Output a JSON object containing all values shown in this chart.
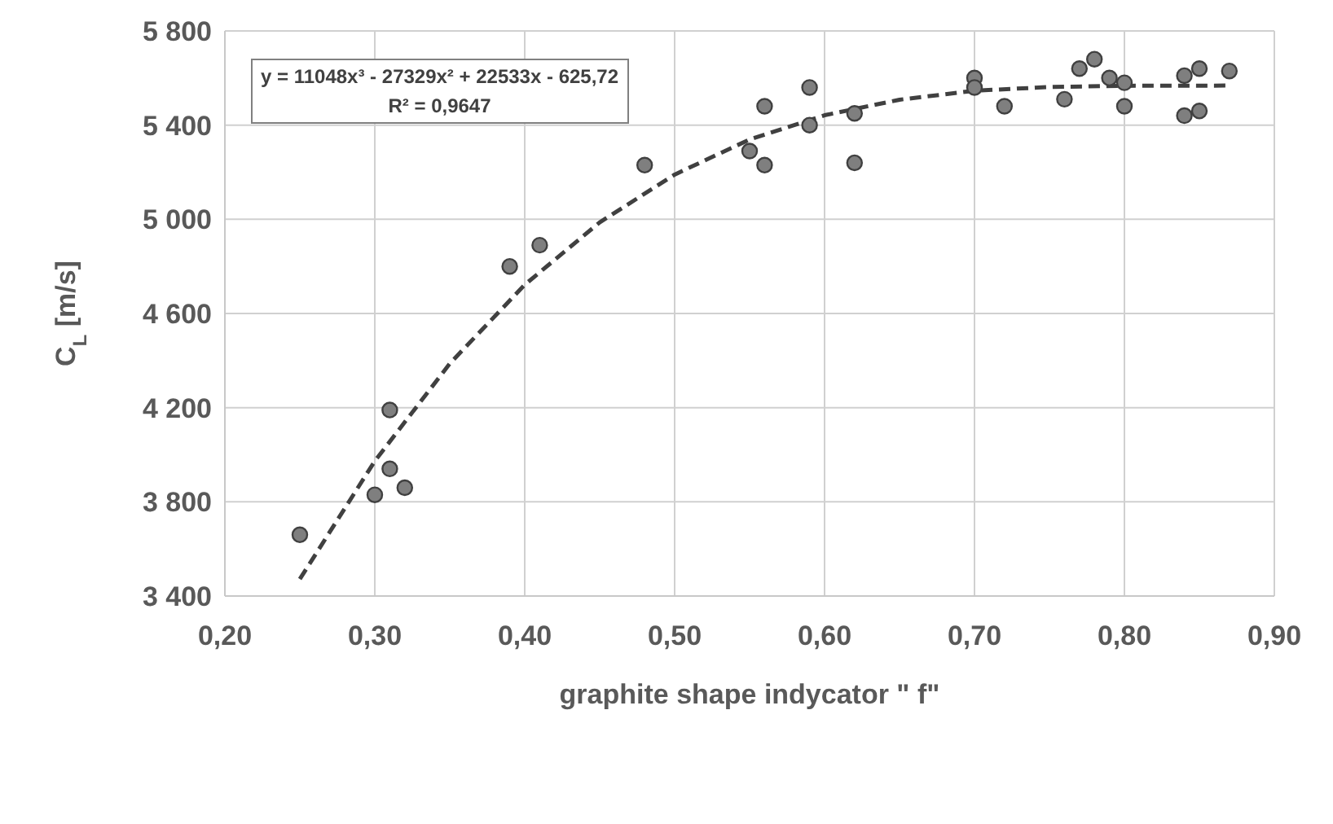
{
  "chart_data": {
    "type": "scatter",
    "xlabel": "graphite shape indycator \" f\"",
    "ylabel": "C$_{L}$ [m/s]",
    "annotations": [
      "y = 11048x³ - 27329x² + 22533x - 625,72",
      "R² = 0,9647"
    ],
    "series": [
      {
        "color": "#7f7f7f",
        "marker": "circle",
        "x": [
          0.25,
          0.3,
          0.31,
          0.32,
          0.31,
          0.39,
          0.41,
          0.48,
          0.55,
          0.56,
          0.56,
          0.59,
          0.59,
          0.62,
          0.62,
          0.7,
          0.7,
          0.72,
          0.76,
          0.77,
          0.78,
          0.79,
          0.8,
          0.8,
          0.84,
          0.84,
          0.85,
          0.85,
          0.87
        ],
        "values": [
          3660,
          3830,
          3940,
          3860,
          4190,
          4800,
          4890,
          5230,
          5290,
          5230,
          5480,
          5560,
          5400,
          5450,
          5240,
          5600,
          5560,
          5480,
          5510,
          5640,
          5680,
          5600,
          5580,
          5480,
          5610,
          5440,
          5640,
          5460,
          5630
        ]
      },
      {
        "type": "line",
        "color": "#404040",
        "marker": "none",
        "line_style": "dashed",
        "x": [
          0.25,
          0.3,
          0.35,
          0.4,
          0.45,
          0.5,
          0.55,
          0.6,
          0.65,
          0.7,
          0.75,
          0.8,
          0.87
        ],
        "values": [
          3472,
          3973,
          4387,
          4722,
          4987,
          5190,
          5339,
          5442,
          5508,
          5546,
          5562,
          5567,
          5568
        ]
      }
    ],
    "xlim": [
      0.2,
      0.9
    ],
    "xticks": [
      {
        "value": 0.2,
        "label": "0,20"
      },
      {
        "value": 0.3,
        "label": "0,30"
      },
      {
        "value": 0.4,
        "label": "0,40"
      },
      {
        "value": 0.5,
        "label": "0,50"
      },
      {
        "value": 0.6,
        "label": "0,60"
      },
      {
        "value": 0.7,
        "label": "0,70"
      },
      {
        "value": 0.8,
        "label": "0,80"
      },
      {
        "value": 0.9,
        "label": "0,90"
      }
    ],
    "ylim": [
      3400,
      5800
    ],
    "yticks": [
      {
        "value": 3400,
        "label": "3 400"
      },
      {
        "value": 3800,
        "label": "3 800"
      },
      {
        "value": 4200,
        "label": "4 200"
      },
      {
        "value": 4600,
        "label": "4 600"
      },
      {
        "value": 5000,
        "label": "5 000"
      },
      {
        "value": 5400,
        "label": "5 400"
      },
      {
        "value": 5800,
        "label": "5 800"
      }
    ],
    "grid": true
  }
}
